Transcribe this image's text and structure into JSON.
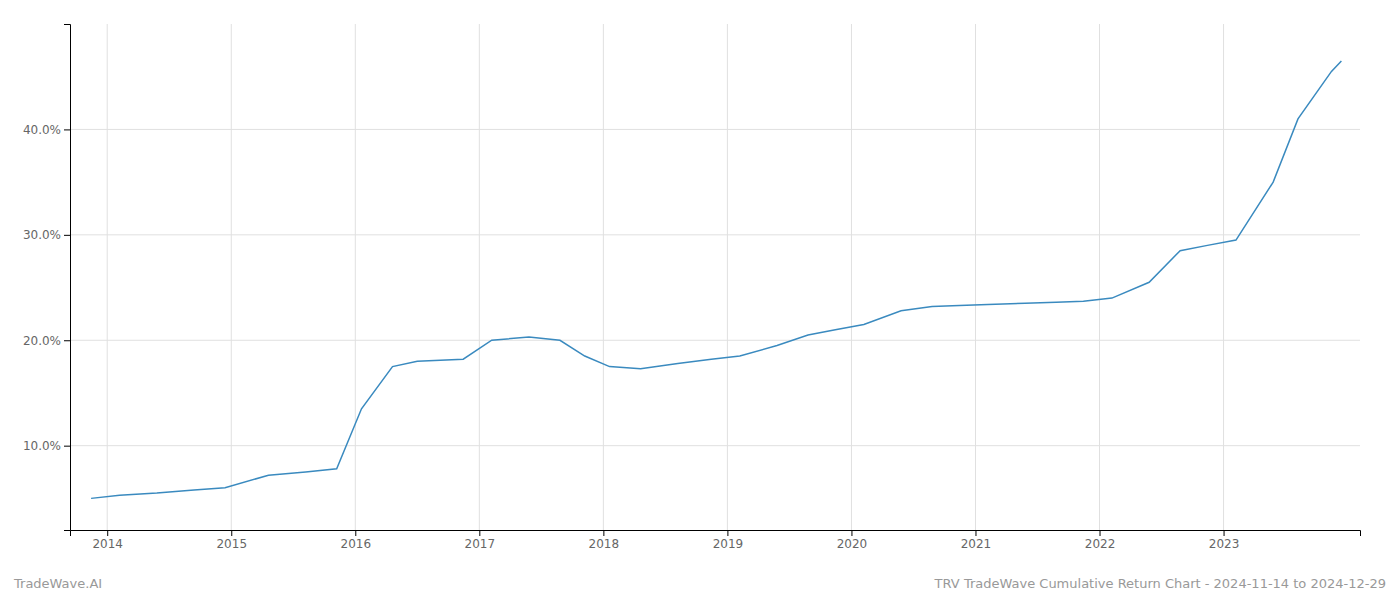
{
  "chart_data": {
    "type": "line",
    "title": "TRV TradeWave Cumulative Return Chart - 2024-11-14 to 2024-12-29",
    "annotations": [
      "TradeWave.AI"
    ],
    "color": "#3a8abf",
    "grid": true,
    "x": [
      2013.87,
      2014.1,
      2014.4,
      2014.7,
      2014.95,
      2015.3,
      2015.6,
      2015.85,
      2016.05,
      2016.3,
      2016.5,
      2016.87,
      2017.1,
      2017.4,
      2017.65,
      2017.85,
      2018.05,
      2018.3,
      2018.6,
      2018.87,
      2019.1,
      2019.4,
      2019.65,
      2019.87,
      2020.1,
      2020.4,
      2020.65,
      2020.87,
      2021.1,
      2021.4,
      2021.65,
      2021.87,
      2022.1,
      2022.4,
      2022.65,
      2022.87,
      2023.1,
      2023.4,
      2023.6,
      2023.87,
      2023.95
    ],
    "values": [
      5.0,
      5.3,
      5.5,
      5.8,
      6.0,
      7.2,
      7.5,
      7.8,
      13.5,
      17.5,
      18.0,
      18.2,
      20.0,
      20.3,
      20.0,
      18.5,
      17.5,
      17.3,
      17.8,
      18.2,
      18.5,
      19.5,
      20.5,
      21.0,
      21.5,
      22.8,
      23.2,
      23.3,
      23.4,
      23.5,
      23.6,
      23.7,
      24.0,
      25.5,
      28.5,
      29.0,
      29.5,
      35.0,
      41.0,
      45.5,
      46.5
    ],
    "xlim": [
      2013.7,
      2024.1
    ],
    "xticks": [
      2014,
      2015,
      2016,
      2017,
      2018,
      2019,
      2020,
      2021,
      2022,
      2023
    ],
    "ylim": [
      2,
      50
    ],
    "yticks": [
      {
        "value": 10,
        "label": "10.0%"
      },
      {
        "value": 20,
        "label": "20.0%"
      },
      {
        "value": 30,
        "label": "30.0%"
      },
      {
        "value": 40,
        "label": "40.0%"
      }
    ]
  }
}
